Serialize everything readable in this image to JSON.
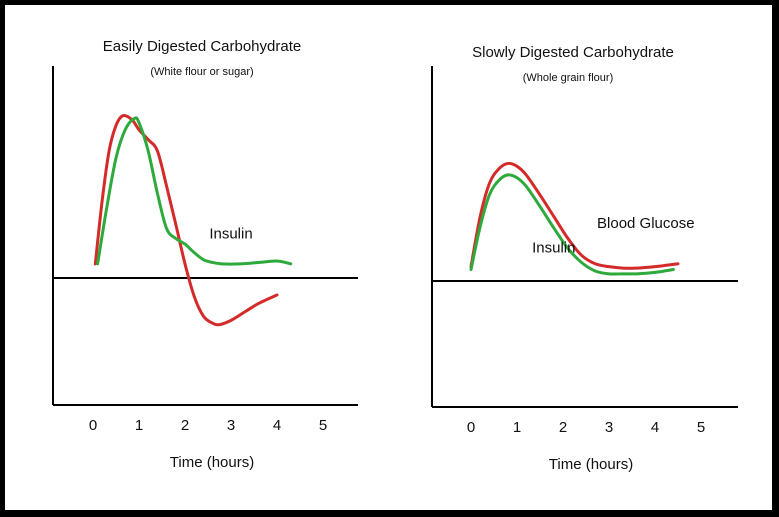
{
  "chart_data": [
    {
      "type": "line",
      "title": "Easily Digested Carbohydrate",
      "subtitle": "(White flour or sugar)",
      "xlabel": "Time (hours)",
      "ylabel": "",
      "xticks": [
        "0",
        "1",
        "2",
        "3",
        "4",
        "5"
      ],
      "xlim": [
        -0.8,
        5.6
      ],
      "ylim": [
        -1,
        1.36
      ],
      "series": [
        {
          "color": "#d42a2a",
          "x": [
            0.05,
            0.2,
            0.35,
            0.5,
            0.65,
            0.85,
            1.0,
            1.2,
            1.4,
            1.6,
            1.8,
            2.0,
            2.2,
            2.4,
            2.6,
            2.75,
            3.0,
            3.3,
            3.6,
            4.0
          ],
          "y": [
            0.1,
            0.55,
            0.9,
            1.08,
            1.15,
            1.12,
            1.05,
            0.98,
            0.9,
            0.65,
            0.38,
            0.1,
            -0.13,
            -0.27,
            -0.32,
            -0.33,
            -0.3,
            -0.24,
            -0.18,
            -0.12
          ]
        },
        {
          "color": "#2eaa3c",
          "x": [
            0.1,
            0.3,
            0.5,
            0.7,
            0.9,
            1.0,
            1.2,
            1.4,
            1.6,
            1.8,
            2.0,
            2.2,
            2.4,
            2.6,
            2.8,
            3.2,
            3.6,
            4.0,
            4.3
          ],
          "y": [
            0.1,
            0.5,
            0.85,
            1.05,
            1.13,
            1.1,
            0.9,
            0.6,
            0.35,
            0.28,
            0.24,
            0.18,
            0.13,
            0.11,
            0.1,
            0.1,
            0.11,
            0.12,
            0.1
          ]
        }
      ],
      "annotations": [
        {
          "text": "Insulin",
          "x": 3.0,
          "y": 0.28
        }
      ]
    },
    {
      "type": "line",
      "title": "Slowly Digested Carbohydrate",
      "subtitle": "(Whole grain flour)",
      "xlabel": "Time (hours)",
      "ylabel": "",
      "xticks": [
        "0",
        "1",
        "2",
        "3",
        "4",
        "5"
      ],
      "xlim": [
        -0.8,
        5.6
      ],
      "ylim": [
        -1,
        1.36
      ],
      "series": [
        {
          "color": "#d42a2a",
          "x": [
            0.0,
            0.2,
            0.4,
            0.6,
            0.8,
            1.0,
            1.2,
            1.5,
            1.8,
            2.1,
            2.4,
            2.7,
            3.0,
            3.3,
            3.6,
            4.0,
            4.5
          ],
          "y": [
            0.1,
            0.45,
            0.68,
            0.78,
            0.82,
            0.8,
            0.74,
            0.6,
            0.45,
            0.3,
            0.18,
            0.12,
            0.1,
            0.09,
            0.09,
            0.1,
            0.12
          ]
        },
        {
          "color": "#2eaa3c",
          "x": [
            0.0,
            0.2,
            0.4,
            0.6,
            0.8,
            1.0,
            1.2,
            1.5,
            1.8,
            2.1,
            2.4,
            2.7,
            3.0,
            3.3,
            3.6,
            4.0,
            4.4
          ],
          "y": [
            0.08,
            0.38,
            0.6,
            0.7,
            0.74,
            0.72,
            0.66,
            0.52,
            0.37,
            0.23,
            0.13,
            0.07,
            0.05,
            0.05,
            0.05,
            0.06,
            0.08
          ]
        }
      ],
      "annotations": [
        {
          "text": "Insulin",
          "x": 1.8,
          "y": 0.2
        },
        {
          "text": "Blood Glucose",
          "x": 3.8,
          "y": 0.37
        }
      ]
    }
  ]
}
